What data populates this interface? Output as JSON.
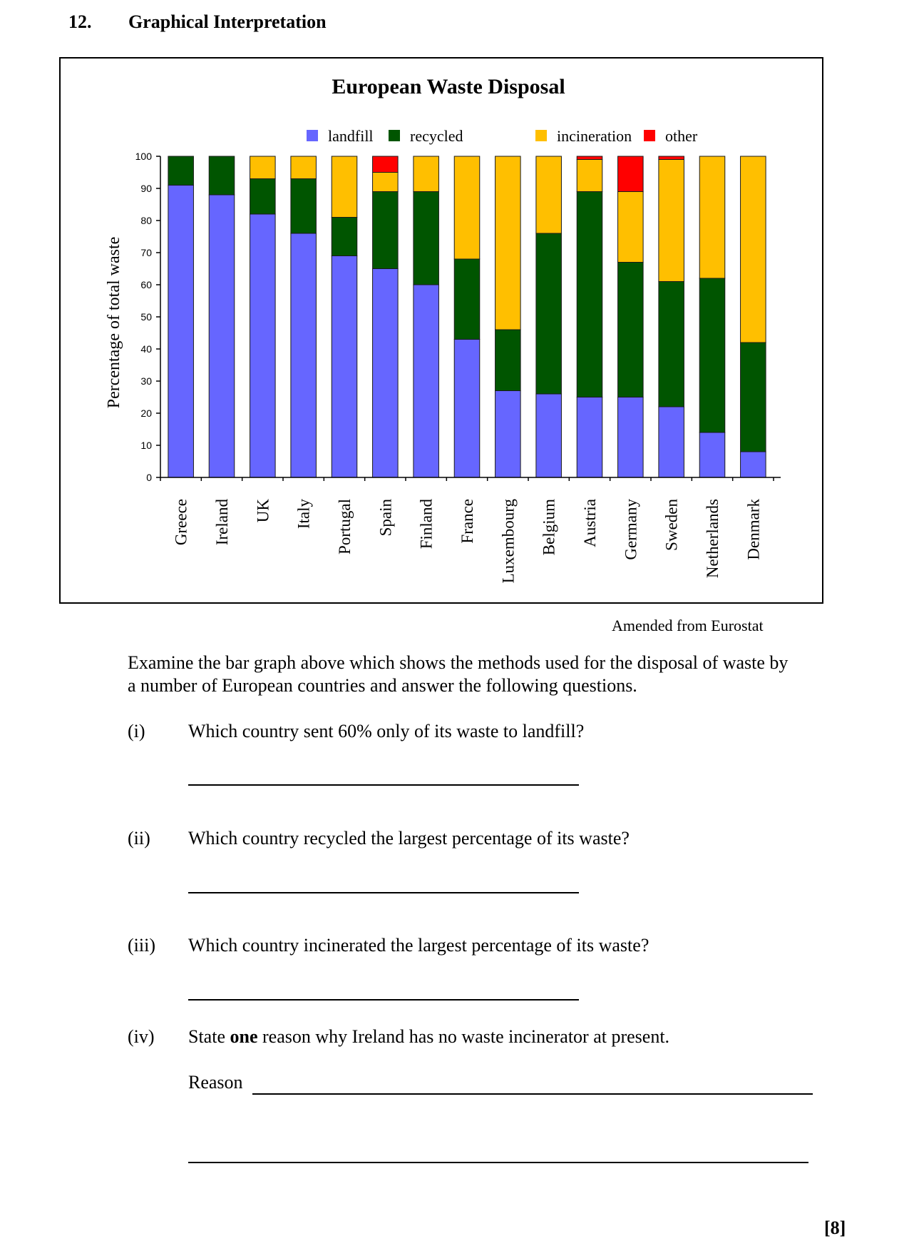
{
  "question": {
    "number": "12.",
    "heading": "Graphical Interpretation"
  },
  "chart_data": {
    "type": "bar",
    "stacked": true,
    "title": "European Waste Disposal",
    "ylabel": "Percentage of total waste",
    "xlabel": "",
    "ylim": [
      0,
      100
    ],
    "yticks": [
      "0",
      "10",
      "20",
      "30",
      "40",
      "50",
      "60",
      "70",
      "80",
      "90",
      "100"
    ],
    "grid": false,
    "legend_position": "top",
    "categories": [
      "Greece",
      "Ireland",
      "UK",
      "Italy",
      "Portugal",
      "Spain",
      "Finland",
      "France",
      "Luxembourg",
      "Belgium",
      "Austria",
      "Germany",
      "Sweden",
      "Netherlands",
      "Denmark"
    ],
    "series": [
      {
        "name": "landfill",
        "color": "#6666ff",
        "values": [
          91,
          88,
          82,
          76,
          69,
          65,
          60,
          43,
          27,
          26,
          25,
          25,
          22,
          14,
          8
        ]
      },
      {
        "name": "recycled",
        "color": "#005500",
        "values": [
          9,
          12,
          11,
          17,
          12,
          24,
          29,
          25,
          19,
          50,
          64,
          42,
          39,
          48,
          34
        ]
      },
      {
        "name": "incineration",
        "color": "#ffbf00",
        "values": [
          0,
          0,
          7,
          7,
          19,
          6,
          11,
          32,
          54,
          24,
          10,
          22,
          38,
          38,
          58
        ]
      },
      {
        "name": "other",
        "color": "#ff0000",
        "values": [
          0,
          0,
          0,
          0,
          0,
          5,
          0,
          0,
          0,
          0,
          1,
          11,
          1,
          0,
          0
        ]
      }
    ]
  },
  "source_note": "Amended from Eurostat",
  "intro": {
    "line1": "Examine the bar graph above which shows the methods used for the disposal of waste by",
    "line2": "a number of European countries and answer the following questions."
  },
  "questions": [
    {
      "num": "(i)",
      "text": "Which country sent 60% only of its waste to landfill?"
    },
    {
      "num": "(ii)",
      "text": "Which country recycled the largest percentage of its waste?"
    },
    {
      "num": "(iii)",
      "text": "Which country incinerated the largest percentage of its waste?"
    },
    {
      "num": "(iv)",
      "text_before": "State ",
      "text_bold": "one",
      "text_after": " reason why Ireland has no waste incinerator at present.",
      "reason_label": "Reason"
    }
  ],
  "marks": "[8]"
}
